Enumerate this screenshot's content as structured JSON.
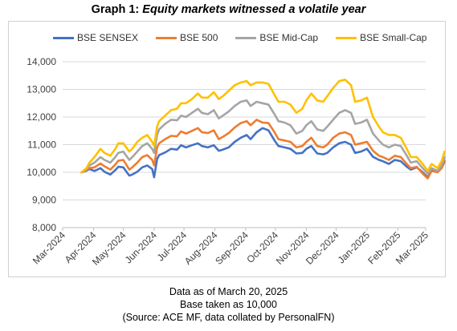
{
  "title": {
    "prefix": "Graph 1: ",
    "main": "Equity markets witnessed a volatile year"
  },
  "notes": [
    "Data as of March 20, 2025",
    "Base taken as 10,000",
    "(Source: ACE MF, data collated by PersonalFN)"
  ],
  "chart_data": {
    "type": "line",
    "title": "Equity markets witnessed a volatile year",
    "ylim": [
      8000,
      14000
    ],
    "yticks": [
      8000,
      9000,
      10000,
      11000,
      12000,
      13000,
      14000
    ],
    "ytick_labels": [
      "8,000",
      "9,000",
      "10,000",
      "11,000",
      "12,000",
      "13,000",
      "14,000"
    ],
    "xticks": [
      "Mar-2024",
      "Apr-2024",
      "May-2024",
      "Jun-2024",
      "Jul-2024",
      "Aug-2024",
      "Sep-2024",
      "Oct-2024",
      "Nov-2024",
      "Dec-2024",
      "Jan-2025",
      "Feb-2025",
      "Mar-2025"
    ],
    "x": [
      "2024-03-20",
      "2024-03-25",
      "2024-03-28",
      "2024-04-02",
      "2024-04-08",
      "2024-04-12",
      "2024-04-18",
      "2024-04-23",
      "2024-04-26",
      "2024-05-01",
      "2024-05-07",
      "2024-05-10",
      "2024-05-15",
      "2024-05-20",
      "2024-05-25",
      "2024-05-30",
      "2024-06-01",
      "2024-06-04",
      "2024-06-06",
      "2024-06-12",
      "2024-06-18",
      "2024-06-24",
      "2024-06-28",
      "2024-07-03",
      "2024-07-09",
      "2024-07-15",
      "2024-07-19",
      "2024-07-25",
      "2024-07-31",
      "2024-08-05",
      "2024-08-09",
      "2024-08-15",
      "2024-08-21",
      "2024-08-27",
      "2024-09-02",
      "2024-09-06",
      "2024-09-12",
      "2024-09-18",
      "2024-09-24",
      "2024-09-30",
      "2024-10-04",
      "2024-10-10",
      "2024-10-16",
      "2024-10-22",
      "2024-10-28",
      "2024-11-01",
      "2024-11-06",
      "2024-11-12",
      "2024-11-18",
      "2024-11-22",
      "2024-11-28",
      "2024-12-04",
      "2024-12-10",
      "2024-12-16",
      "2024-12-20",
      "2024-12-26",
      "2025-01-01",
      "2025-01-07",
      "2025-01-13",
      "2025-01-17",
      "2025-01-23",
      "2025-01-29",
      "2025-02-04",
      "2025-02-10",
      "2025-02-14",
      "2025-02-20",
      "2025-02-26",
      "2025-03-03",
      "2025-03-07",
      "2025-03-13",
      "2025-03-17",
      "2025-03-20"
    ],
    "series": [
      {
        "name": "BSE SENSEX",
        "color": "#4472c4",
        "values": [
          10000,
          10060,
          10120,
          10050,
          10150,
          10020,
          9920,
          10080,
          10200,
          10180,
          9880,
          9920,
          10020,
          10180,
          10250,
          10120,
          9820,
          10480,
          10620,
          10720,
          10850,
          10820,
          10980,
          10900,
          10980,
          11050,
          10950,
          10900,
          10980,
          10780,
          10820,
          10900,
          11100,
          11250,
          11350,
          11200,
          11450,
          11600,
          11520,
          11150,
          10950,
          10900,
          10850,
          10680,
          10700,
          10850,
          10950,
          10680,
          10650,
          10700,
          10900,
          11050,
          11100,
          11000,
          10700,
          10750,
          10850,
          10560,
          10450,
          10400,
          10300,
          10450,
          10400,
          10200,
          10100,
          10180,
          10000,
          9820,
          10080,
          10050,
          10150,
          10380
        ]
      },
      {
        "name": "BSE 500",
        "color": "#ed7d31",
        "values": [
          10000,
          10080,
          10150,
          10180,
          10320,
          10220,
          10100,
          10280,
          10420,
          10450,
          10100,
          10180,
          10350,
          10550,
          10620,
          10450,
          10250,
          10900,
          11050,
          11200,
          11320,
          11300,
          11480,
          11400,
          11500,
          11600,
          11450,
          11420,
          11520,
          11200,
          11280,
          11420,
          11620,
          11780,
          11850,
          11700,
          11900,
          11800,
          11780,
          11450,
          11200,
          11150,
          11100,
          10900,
          10950,
          11100,
          11250,
          10950,
          10900,
          11000,
          11250,
          11400,
          11450,
          11350,
          11000,
          11050,
          11100,
          10780,
          10600,
          10550,
          10450,
          10600,
          10550,
          10300,
          10150,
          10200,
          9950,
          9780,
          10050,
          10000,
          10150,
          10420
        ]
      },
      {
        "name": "BSE Mid-Cap",
        "color": "#a5a5a5",
        "values": [
          10000,
          10120,
          10250,
          10350,
          10550,
          10450,
          10350,
          10550,
          10700,
          10750,
          10450,
          10550,
          10750,
          10950,
          11050,
          10850,
          10700,
          11350,
          11550,
          11750,
          11900,
          11880,
          12050,
          12000,
          12150,
          12300,
          12150,
          12100,
          12250,
          11950,
          12050,
          12200,
          12400,
          12550,
          12600,
          12400,
          12550,
          12500,
          12450,
          12100,
          11850,
          11800,
          11700,
          11400,
          11500,
          11700,
          11850,
          11550,
          11500,
          11650,
          11900,
          12150,
          12250,
          12150,
          11750,
          11800,
          11900,
          11400,
          11150,
          11000,
          10900,
          11000,
          10950,
          10600,
          10350,
          10400,
          10150,
          9950,
          10150,
          10050,
          10250,
          10550
        ]
      },
      {
        "name": "BSE Small-Cap",
        "color": "#ffc000",
        "values": [
          10000,
          10150,
          10350,
          10550,
          10850,
          10700,
          10600,
          10850,
          11050,
          11050,
          10750,
          10850,
          11100,
          11250,
          11350,
          11100,
          10950,
          11650,
          11850,
          12050,
          12250,
          12300,
          12500,
          12500,
          12650,
          12850,
          12700,
          12700,
          12900,
          12650,
          12750,
          12950,
          13150,
          13250,
          13300,
          13150,
          13250,
          13250,
          13200,
          12800,
          12550,
          12550,
          12450,
          12150,
          12300,
          12600,
          12850,
          12600,
          12550,
          12750,
          13050,
          13300,
          13350,
          13150,
          12550,
          12600,
          12700,
          12000,
          11650,
          11450,
          11350,
          11350,
          11250,
          10850,
          10550,
          10550,
          10300,
          10050,
          10300,
          10150,
          10400,
          10750
        ]
      }
    ]
  }
}
